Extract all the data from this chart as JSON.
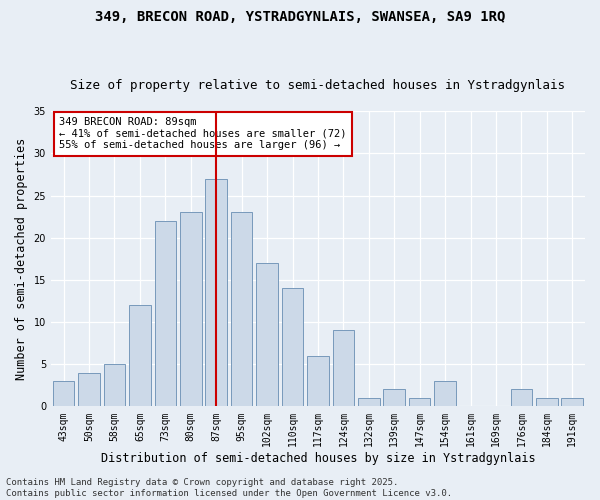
{
  "title_line1": "349, BRECON ROAD, YSTRADGYNLAIS, SWANSEA, SA9 1RQ",
  "title_line2": "Size of property relative to semi-detached houses in Ystradgynlais",
  "xlabel": "Distribution of semi-detached houses by size in Ystradgynlais",
  "ylabel": "Number of semi-detached properties",
  "categories": [
    "43sqm",
    "50sqm",
    "58sqm",
    "65sqm",
    "73sqm",
    "80sqm",
    "87sqm",
    "95sqm",
    "102sqm",
    "110sqm",
    "117sqm",
    "124sqm",
    "132sqm",
    "139sqm",
    "147sqm",
    "154sqm",
    "161sqm",
    "169sqm",
    "176sqm",
    "184sqm",
    "191sqm"
  ],
  "values": [
    3,
    4,
    5,
    12,
    22,
    23,
    27,
    23,
    17,
    14,
    6,
    9,
    1,
    2,
    1,
    3,
    0,
    0,
    2,
    1,
    1
  ],
  "bar_color": "#ccd9e8",
  "bar_edge_color": "#7799bb",
  "highlight_index": 6,
  "highlight_line_color": "#cc0000",
  "ylim": [
    0,
    35
  ],
  "yticks": [
    0,
    5,
    10,
    15,
    20,
    25,
    30,
    35
  ],
  "annotation_title": "349 BRECON ROAD: 89sqm",
  "annotation_line2": "← 41% of semi-detached houses are smaller (72)",
  "annotation_line3": "55% of semi-detached houses are larger (96) →",
  "annotation_box_color": "#ffffff",
  "annotation_box_edge": "#cc0000",
  "footer_line1": "Contains HM Land Registry data © Crown copyright and database right 2025.",
  "footer_line2": "Contains public sector information licensed under the Open Government Licence v3.0.",
  "background_color": "#e8eef5",
  "grid_color": "#ffffff",
  "title_fontsize": 10,
  "subtitle_fontsize": 9,
  "axis_label_fontsize": 8.5,
  "tick_fontsize": 7,
  "annotation_fontsize": 7.5,
  "footer_fontsize": 6.5
}
